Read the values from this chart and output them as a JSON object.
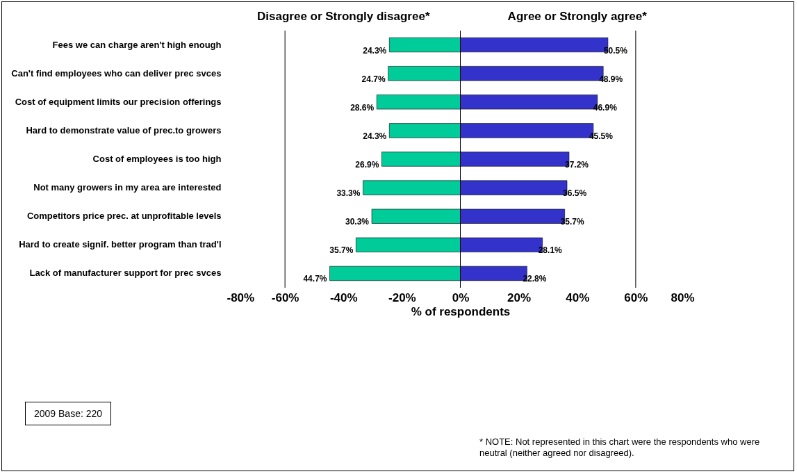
{
  "chart_data": {
    "type": "bar",
    "orientation": "horizontal",
    "xlabel": "% of respondents",
    "categories": [
      "Fees we can charge aren't high enough",
      "Can't find employees who can deliver prec svces",
      "Cost of equipment limits our precision offerings",
      "Hard to demonstrate value of prec.to growers",
      "Cost of employees is too high",
      "Not many growers in my area are interested",
      "Competitors price prec. at unprofitable levels",
      "Hard to create signif. better program than trad'l",
      "Lack of manufacturer support for prec svces"
    ],
    "series": [
      {
        "name": "Disagree or Strongly disagree*",
        "color": "#00cc99",
        "values": [
          24.3,
          24.7,
          28.6,
          24.3,
          26.9,
          33.3,
          30.3,
          35.7,
          44.7
        ],
        "base": [
          -24.3,
          -24.7,
          -28.6,
          -24.3,
          -26.9,
          -33.3,
          -30.3,
          -35.7,
          -44.7
        ],
        "value_labels": [
          "24.3%",
          "24.7%",
          "28.6%",
          "24.3%",
          "26.9%",
          "33.3%",
          "30.3%",
          "35.7%",
          "44.7%"
        ]
      },
      {
        "name": "Agree or Strongly agree*",
        "color": "#3333cc",
        "values": [
          50.5,
          48.9,
          46.9,
          45.5,
          37.2,
          36.5,
          35.7,
          28.1,
          22.8
        ],
        "value_labels": [
          "50.5%",
          "48.9%",
          "46.9%",
          "45.5%",
          "37.2%",
          "36.5%",
          "35.7%",
          "28.1%",
          "22.8%"
        ]
      }
    ],
    "xlim": [
      -80,
      80
    ],
    "xticks": [
      {
        "value": -80,
        "label": "-80%"
      },
      {
        "value": -60,
        "label": "-60%"
      },
      {
        "value": -40,
        "label": "-40%"
      },
      {
        "value": -20,
        "label": "-20%"
      },
      {
        "value": 0,
        "label": "0%"
      },
      {
        "value": 20,
        "label": "20%"
      },
      {
        "value": 40,
        "label": "40%"
      },
      {
        "value": 60,
        "label": "60%"
      },
      {
        "value": 80,
        "label": "80%"
      }
    ],
    "ref_lines": [
      {
        "axis": "x",
        "value": -60,
        "color": "#000000"
      },
      {
        "axis": "x",
        "value": 0,
        "color": "#000000"
      },
      {
        "axis": "x",
        "value": 60,
        "color": "#000000"
      }
    ],
    "legend": false,
    "annotations": [
      "2009 Base: 220",
      "* NOTE: Not represented in this chart were the respondents who were neutral (neither agreed nor disagreed)."
    ]
  }
}
